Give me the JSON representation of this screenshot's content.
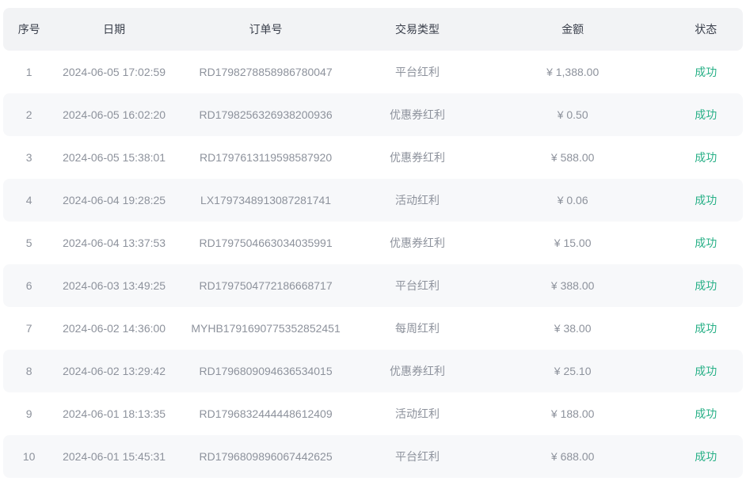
{
  "table": {
    "headers": [
      "序号",
      "日期",
      "订单号",
      "交易类型",
      "金额",
      "状态"
    ],
    "success_color": "#28b087",
    "rows": [
      {
        "index": "1",
        "date": "2024-06-05 17:02:59",
        "order_no": "RD1798278858986780047",
        "type": "平台红利",
        "amount": "¥ 1,388.00",
        "status": "成功"
      },
      {
        "index": "2",
        "date": "2024-06-05 16:02:20",
        "order_no": "RD1798256326938200936",
        "type": "优惠券红利",
        "amount": "¥ 0.50",
        "status": "成功"
      },
      {
        "index": "3",
        "date": "2024-06-05 15:38:01",
        "order_no": "RD1797613119598587920",
        "type": "优惠券红利",
        "amount": "¥ 588.00",
        "status": "成功"
      },
      {
        "index": "4",
        "date": "2024-06-04 19:28:25",
        "order_no": "LX1797348913087281741",
        "type": "活动红利",
        "amount": "¥ 0.06",
        "status": "成功"
      },
      {
        "index": "5",
        "date": "2024-06-04 13:37:53",
        "order_no": "RD1797504663034035991",
        "type": "优惠券红利",
        "amount": "¥ 15.00",
        "status": "成功"
      },
      {
        "index": "6",
        "date": "2024-06-03 13:49:25",
        "order_no": "RD1797504772186668717",
        "type": "平台红利",
        "amount": "¥ 388.00",
        "status": "成功"
      },
      {
        "index": "7",
        "date": "2024-06-02 14:36:00",
        "order_no": "MYHB1791690775352852451",
        "type": "每周红利",
        "amount": "¥ 38.00",
        "status": "成功"
      },
      {
        "index": "8",
        "date": "2024-06-02 13:29:42",
        "order_no": "RD1796809094636534015",
        "type": "优惠券红利",
        "amount": "¥ 25.10",
        "status": "成功"
      },
      {
        "index": "9",
        "date": "2024-06-01 18:13:35",
        "order_no": "RD1796832444448612409",
        "type": "活动红利",
        "amount": "¥ 188.00",
        "status": "成功"
      },
      {
        "index": "10",
        "date": "2024-06-01 15:45:31",
        "order_no": "RD1796809896067442625",
        "type": "平台红利",
        "amount": "¥ 688.00",
        "status": "成功"
      }
    ]
  }
}
